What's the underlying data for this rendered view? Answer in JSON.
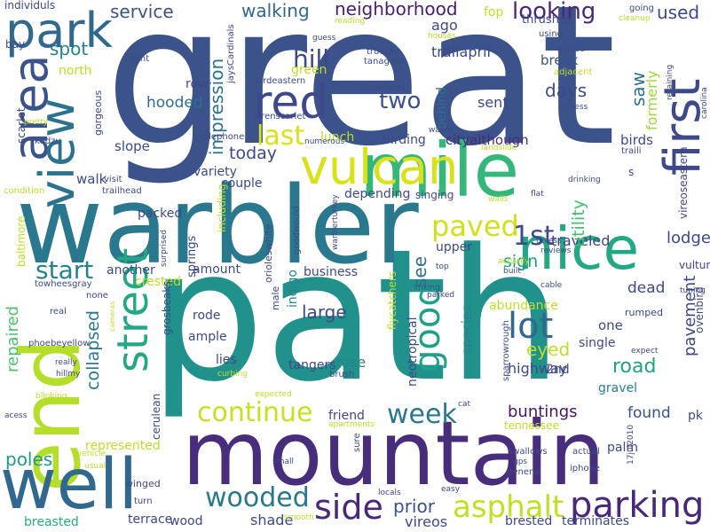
{
  "words": [
    {
      "text": "great",
      "color": "#3b528b"
    },
    {
      "text": "path",
      "color": "#21918c"
    },
    {
      "text": "warbler",
      "color": "#2a788e"
    },
    {
      "text": "mountain",
      "color": "#472d7b"
    },
    {
      "text": "end",
      "color": "#b5de2b"
    },
    {
      "text": "well",
      "color": "#31688e"
    },
    {
      "text": "mile",
      "color": "#35b779"
    },
    {
      "text": "area",
      "color": "#3b528b"
    },
    {
      "text": "view",
      "color": "#2c728e"
    },
    {
      "text": "vulcan",
      "color": "#d8e219"
    },
    {
      "text": "first",
      "color": "#3e4989"
    },
    {
      "text": "nice",
      "color": "#22a884"
    },
    {
      "text": "red",
      "color": "#3e4989"
    },
    {
      "text": "park",
      "color": "#31688e"
    },
    {
      "text": "street",
      "color": "#22a884"
    },
    {
      "text": "good",
      "color": "#1fa187"
    },
    {
      "text": "side",
      "color": "#482878"
    },
    {
      "text": "parking",
      "color": "#482878"
    },
    {
      "text": "lot",
      "color": "#31688e"
    },
    {
      "text": "asphalt",
      "color": "#c2df23"
    },
    {
      "text": "wooded",
      "color": "#2a788e"
    },
    {
      "text": "week",
      "color": "#2a788e"
    },
    {
      "text": "continue",
      "color": "#c8e020"
    },
    {
      "text": "paved",
      "color": "#d0e11c"
    },
    {
      "text": "1st",
      "color": "#3e4989"
    },
    {
      "text": "start",
      "color": "#26828e"
    },
    {
      "text": "last",
      "color": "#d8e219"
    },
    {
      "text": "two",
      "color": "#3b528b"
    },
    {
      "text": "looking",
      "color": "#482878"
    },
    {
      "text": "hill",
      "color": "#3e4989"
    },
    {
      "text": "neighborhood",
      "color": "#481f70"
    },
    {
      "text": "walking",
      "color": "#31688e"
    },
    {
      "text": "spot",
      "color": "#26828e"
    },
    {
      "text": "service",
      "color": "#3b528b"
    },
    {
      "text": "impression",
      "color": "#2c728e"
    },
    {
      "text": "hooded",
      "color": "#2e6e8e"
    },
    {
      "text": "today",
      "color": "#3e4989"
    },
    {
      "text": "collapsed",
      "color": "#2a788e"
    },
    {
      "text": "repaired",
      "color": "#4ac16d"
    },
    {
      "text": "poles",
      "color": "#1e9c89"
    },
    {
      "text": "large",
      "color": "#3e4989"
    },
    {
      "text": "buntings",
      "color": "#471365"
    },
    {
      "text": "found",
      "color": "#3b528b"
    },
    {
      "text": "road",
      "color": "#1fa187"
    },
    {
      "text": "eyed",
      "color": "#bddf26"
    },
    {
      "text": "sign",
      "color": "#1fa187"
    },
    {
      "text": "see",
      "color": "#2e6e8e"
    },
    {
      "text": "days",
      "color": "#3e4989"
    },
    {
      "text": "used",
      "color": "#3e4989"
    },
    {
      "text": "saw",
      "color": "#2c728e"
    },
    {
      "text": "lodge",
      "color": "#3e4989"
    },
    {
      "text": "traveled",
      "color": "#414487"
    },
    {
      "text": "utility",
      "color": "#44bf70"
    },
    {
      "text": "formerly",
      "color": "#9dd93b"
    },
    {
      "text": "pavement",
      "color": "#3e4989"
    },
    {
      "text": "dead",
      "color": "#3e4989"
    },
    {
      "text": "birds",
      "color": "#3e4989"
    },
    {
      "text": "cityalthough",
      "color": "#472d7b"
    },
    {
      "text": "birding",
      "color": "#3e4989"
    },
    {
      "text": "trailapril",
      "color": "#3e4989"
    },
    {
      "text": "ago",
      "color": "#3e4989"
    },
    {
      "text": "behind",
      "color": "#2e6e8e"
    },
    {
      "text": "sent",
      "color": "#3e4989"
    },
    {
      "text": "break",
      "color": "#3b528b"
    },
    {
      "text": "thrushes",
      "color": "#3e4989"
    },
    {
      "text": "fop",
      "color": "#c2df23"
    },
    {
      "text": "highway",
      "color": "#3e4989"
    },
    {
      "text": "gravel",
      "color": "#26828e"
    },
    {
      "text": "2nd",
      "color": "#3e4989"
    },
    {
      "text": "palm",
      "color": "#3e4989"
    },
    {
      "text": "pk",
      "color": "#3e4989"
    },
    {
      "text": "terminates",
      "color": "#3e4989"
    },
    {
      "text": "brested",
      "color": "#3e4989"
    },
    {
      "text": "vireos",
      "color": "#3e4989"
    },
    {
      "text": "prior",
      "color": "#3b528b"
    },
    {
      "text": "shade",
      "color": "#3e4989"
    },
    {
      "text": "terrace",
      "color": "#3e4989"
    },
    {
      "text": "wood",
      "color": "#3e4989"
    },
    {
      "text": "breasted",
      "color": "#27ad81"
    },
    {
      "text": "friend",
      "color": "#3e4989"
    },
    {
      "text": "rose",
      "color": "#26828e"
    },
    {
      "text": "species",
      "color": "#26828e"
    },
    {
      "text": "tangers",
      "color": "#3e4989"
    },
    {
      "text": "neotropical",
      "color": "#3e4989"
    },
    {
      "text": "abundance",
      "color": "#c2df23"
    },
    {
      "text": "one",
      "color": "#3e4989"
    },
    {
      "text": "single",
      "color": "#3e4989"
    },
    {
      "text": "business",
      "color": "#3e4989"
    },
    {
      "text": "upper",
      "color": "#3e4989"
    },
    {
      "text": "depending",
      "color": "#3e4989"
    },
    {
      "text": "singing",
      "color": "#3e4989"
    },
    {
      "text": "couple",
      "color": "#3e4989"
    },
    {
      "text": "variety",
      "color": "#3e4989"
    },
    {
      "text": "packed",
      "color": "#3e4989"
    },
    {
      "text": "amount",
      "color": "#3e4989"
    },
    {
      "text": "rode",
      "color": "#3e4989"
    },
    {
      "text": "ample",
      "color": "#3e4989"
    },
    {
      "text": "lies",
      "color": "#3e4989"
    },
    {
      "text": "another",
      "color": "#3e4989"
    },
    {
      "text": "crested",
      "color": "#bddf26"
    },
    {
      "text": "slope",
      "color": "#3e4989"
    },
    {
      "text": "walk",
      "color": "#3e4989"
    },
    {
      "text": "lunch",
      "color": "#bddf26"
    },
    {
      "text": "indigo",
      "color": "#26828e"
    },
    {
      "text": "springs",
      "color": "#3e4989"
    },
    {
      "text": "including",
      "color": "#bddf26"
    },
    {
      "text": "grosbeaks",
      "color": "#3e4989"
    },
    {
      "text": "cerulean",
      "color": "#3e4989"
    },
    {
      "text": "scarlet",
      "color": "#3e4989"
    },
    {
      "text": "gorgeous",
      "color": "#3e4989"
    },
    {
      "text": "north",
      "color": "#bddf26"
    },
    {
      "text": "green",
      "color": "#bddf26"
    },
    {
      "text": "row",
      "color": "#3e4989"
    },
    {
      "text": "flycatchers",
      "color": "#bddf26"
    },
    {
      "text": "represented",
      "color": "#bddf26"
    },
    {
      "text": "tennessee",
      "color": "#bddf26"
    },
    {
      "text": "vireoseastern",
      "color": "#3e4989"
    },
    {
      "text": "vultures",
      "color": "#3e4989"
    },
    {
      "text": "ovenbird",
      "color": "#3e4989"
    },
    {
      "text": "s",
      "color": "#3e4989"
    },
    {
      "text": "individuls",
      "color": "#3e4989"
    },
    {
      "text": "bay",
      "color": "#3e4989"
    },
    {
      "text": "baltimore",
      "color": "#bddf26"
    },
    {
      "text": "orioleswhite",
      "color": "#3e4989"
    },
    {
      "text": "male",
      "color": "#3e4989"
    },
    {
      "text": "rumped",
      "color": "#3e4989"
    },
    {
      "text": "expect",
      "color": "#3e4989"
    },
    {
      "text": "carolina",
      "color": "#3e4989"
    },
    {
      "text": "tuning",
      "color": "#3e4989"
    },
    {
      "text": "reviews",
      "color": "#3e4989"
    },
    {
      "text": "cable",
      "color": "#3e4989"
    },
    {
      "text": "actual",
      "color": "#3e4989"
    },
    {
      "text": "iphone",
      "color": "#3e4989"
    },
    {
      "text": "17jul2010",
      "color": "#3e4989"
    },
    {
      "text": "swallows",
      "color": "#3e4989"
    },
    {
      "text": "gps",
      "color": "#3e4989"
    },
    {
      "text": "general",
      "color": "#3e4989"
    },
    {
      "text": "easy",
      "color": "#3e4989"
    },
    {
      "text": "locals",
      "color": "#3e4989"
    },
    {
      "text": "small",
      "color": "#3e4989"
    },
    {
      "text": "smooth",
      "color": "#bddf26"
    },
    {
      "text": "turn",
      "color": "#3e4989"
    },
    {
      "text": "winged",
      "color": "#3e4989"
    },
    {
      "text": "usual",
      "color": "#bddf26"
    },
    {
      "text": "vehicle",
      "color": "#bddf26"
    },
    {
      "text": "acess",
      "color": "#3e4989"
    },
    {
      "text": "blinking",
      "color": "#bddf26"
    },
    {
      "text": "hillmy",
      "color": "#3e4989"
    },
    {
      "text": "really",
      "color": "#3e4989"
    },
    {
      "text": "phoebeyellow",
      "color": "#3e4989"
    },
    {
      "text": "real",
      "color": "#3e4989"
    },
    {
      "text": "towheesgray",
      "color": "#3e4989"
    },
    {
      "text": "none",
      "color": "#3e4989"
    },
    {
      "text": "cameras",
      "color": "#bddf26"
    },
    {
      "text": "curbing",
      "color": "#bddf26"
    },
    {
      "text": "expected",
      "color": "#bddf26"
    },
    {
      "text": "sure",
      "color": "#3e4989"
    },
    {
      "text": "apartments",
      "color": "#bddf26"
    },
    {
      "text": "cat",
      "color": "#3e4989"
    },
    {
      "text": "sparrowrough",
      "color": "#3e4989"
    },
    {
      "text": "brush",
      "color": "#3e4989"
    },
    {
      "text": "linking",
      "color": "#3e4989"
    },
    {
      "text": "parked",
      "color": "#3e4989"
    },
    {
      "text": "top",
      "color": "#3e4989"
    },
    {
      "text": "built",
      "color": "#3e4989"
    },
    {
      "text": "actually",
      "color": "#bddf26"
    },
    {
      "text": "unless",
      "color": "#3e4989"
    },
    {
      "text": "walls",
      "color": "#bddf26"
    },
    {
      "text": "flat",
      "color": "#3e4989"
    },
    {
      "text": "drinking",
      "color": "#3e4989"
    },
    {
      "text": "traili",
      "color": "#3e4989"
    },
    {
      "text": "adjacent",
      "color": "#bddf26"
    },
    {
      "text": "retaining",
      "color": "#3e4989"
    },
    {
      "text": "access",
      "color": "#3e4989"
    },
    {
      "text": "limited",
      "color": "#3e4989"
    },
    {
      "text": "going",
      "color": "#3e4989"
    },
    {
      "text": "cleanup",
      "color": "#bddf26"
    },
    {
      "text": "using",
      "color": "#3e4989"
    },
    {
      "text": "houses",
      "color": "#bddf26"
    },
    {
      "text": "trucks",
      "color": "#3e4989"
    },
    {
      "text": "tanagers",
      "color": "#3e4989"
    },
    {
      "text": "crowstrail",
      "color": "#3e4989"
    },
    {
      "text": "wasnt",
      "color": "#3e4989"
    },
    {
      "text": "landslide",
      "color": "#bddf26"
    },
    {
      "text": "numerous",
      "color": "#3e4989"
    },
    {
      "text": "telephone",
      "color": "#3e4989"
    },
    {
      "text": "wrenscarlet",
      "color": "#3e4989"
    },
    {
      "text": "birdeastern",
      "color": "#3e4989"
    },
    {
      "text": "jaysCardinals",
      "color": "#3e4989"
    },
    {
      "text": "guess",
      "color": "#3e4989"
    },
    {
      "text": "reading",
      "color": "#bddf26"
    },
    {
      "text": "light",
      "color": "#3e4989"
    },
    {
      "text": "pretty",
      "color": "#bddf26"
    },
    {
      "text": "kudzu",
      "color": "#3e4989"
    },
    {
      "text": "condition",
      "color": "#bddf26"
    },
    {
      "text": "visit",
      "color": "#3e4989"
    },
    {
      "text": "trailhead",
      "color": "#3e4989"
    },
    {
      "text": "surprised",
      "color": "#3e4989"
    },
    {
      "text": "goodwould",
      "color": "#3e4989"
    },
    {
      "text": "warblerturkey",
      "color": "#3e4989"
    }
  ]
}
